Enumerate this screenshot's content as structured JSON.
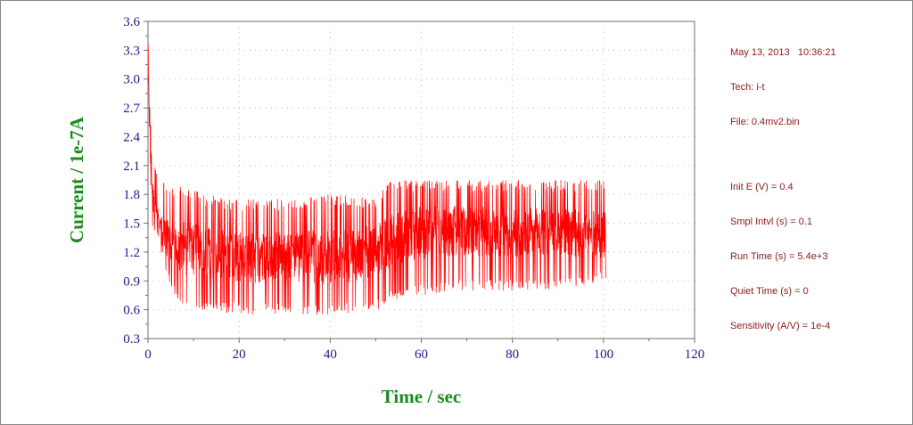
{
  "info": {
    "date": "May 13, 2013",
    "time": "10:36:21",
    "tech": "Tech: i-t",
    "file": "File: 0.4mv2.bin",
    "params": [
      "Init E (V) = 0.4",
      "Smpl Intvl (s) = 0.1",
      "Run Time (s) = 5.4e+3",
      "Quiet Time (s) = 0",
      "Sensitivity (A/V) = 1e-4"
    ]
  },
  "chart_data": {
    "type": "line",
    "xlabel": "Time / sec",
    "ylabel": "Current / 1e-7A",
    "xlim": [
      0,
      120
    ],
    "ylim": [
      0.3,
      3.6
    ],
    "x_ticks": [
      "0",
      "20",
      "40",
      "60",
      "80",
      "100",
      "120"
    ],
    "y_ticks": [
      "0.3",
      "0.6",
      "0.9",
      "1.2",
      "1.5",
      "1.8",
      "2.1",
      "2.4",
      "2.7",
      "3.0",
      "3.3",
      "3.6"
    ],
    "grid": true,
    "line_color": "#ff0000",
    "envelope": {
      "x": [
        0,
        0.3,
        1,
        2,
        3,
        5,
        8,
        12,
        20,
        30,
        40,
        45,
        50,
        53,
        60,
        70,
        80,
        90,
        100.5
      ],
      "center": [
        3.4,
        2.6,
        1.8,
        1.55,
        1.4,
        1.3,
        1.25,
        1.2,
        1.15,
        1.15,
        1.15,
        1.17,
        1.22,
        1.3,
        1.4,
        1.42,
        1.4,
        1.4,
        1.38
      ],
      "upper": [
        3.5,
        2.9,
        2.2,
        2.0,
        1.95,
        1.85,
        1.9,
        1.8,
        1.75,
        1.75,
        1.8,
        1.8,
        1.75,
        1.95,
        1.95,
        1.95,
        1.95,
        1.95,
        1.95
      ],
      "lower": [
        3.3,
        2.3,
        1.4,
        1.3,
        1.15,
        0.8,
        0.62,
        0.6,
        0.55,
        0.55,
        0.55,
        0.55,
        0.58,
        0.7,
        0.75,
        0.8,
        0.8,
        0.8,
        0.9
      ]
    }
  }
}
